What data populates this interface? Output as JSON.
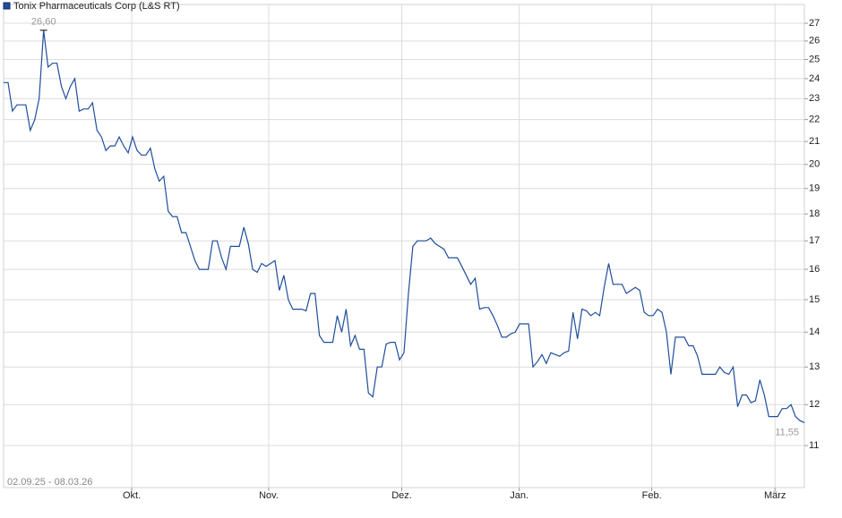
{
  "chart_data": {
    "type": "line",
    "legend": "Tonix Pharmaceuticals Corp (L&S RT)",
    "range_label": "02.09.25 - 08.03.26",
    "series": [
      {
        "name": "Tonix Pharmaceuticals Corp (L&S RT)",
        "color": "#1f4e9c",
        "values": [
          23.8,
          23.8,
          22.4,
          22.7,
          22.7,
          22.7,
          21.5,
          22.0,
          23.0,
          26.6,
          24.6,
          24.8,
          24.8,
          23.6,
          23.0,
          23.6,
          24.0,
          22.4,
          22.5,
          22.5,
          22.8,
          21.5,
          21.2,
          20.6,
          20.8,
          20.8,
          21.2,
          20.8,
          20.5,
          21.2,
          20.6,
          20.4,
          20.4,
          20.7,
          19.8,
          19.3,
          19.5,
          18.1,
          17.9,
          17.9,
          17.3,
          17.3,
          16.8,
          16.3,
          16.0,
          16.0,
          16.0,
          17.0,
          17.0,
          16.4,
          16.0,
          16.8,
          16.8,
          16.8,
          17.5,
          16.9,
          16.0,
          15.9,
          16.2,
          16.1,
          16.2,
          16.3,
          15.3,
          15.8,
          15.0,
          14.7,
          14.7,
          14.7,
          14.65,
          15.2,
          15.2,
          13.9,
          13.7,
          13.7,
          13.7,
          14.5,
          14.0,
          14.7,
          13.6,
          13.9,
          13.5,
          13.5,
          12.3,
          12.2,
          13.0,
          13.0,
          13.65,
          13.7,
          13.7,
          13.2,
          13.4,
          15.2,
          16.8,
          17.0,
          17.0,
          17.0,
          17.1,
          16.9,
          16.8,
          16.7,
          16.4,
          16.4,
          16.4,
          16.1,
          15.8,
          15.5,
          15.7,
          14.7,
          14.75,
          14.75,
          14.5,
          14.2,
          13.85,
          13.85,
          13.95,
          14.0,
          14.25,
          14.25,
          14.25,
          13.0,
          13.15,
          13.35,
          13.1,
          13.4,
          13.35,
          13.3,
          13.4,
          13.45,
          14.6,
          13.8,
          14.7,
          14.65,
          14.5,
          14.6,
          14.5,
          15.4,
          16.2,
          15.5,
          15.5,
          15.5,
          15.2,
          15.3,
          15.4,
          15.3,
          14.6,
          14.5,
          14.5,
          14.7,
          14.6,
          14.0,
          12.8,
          13.85,
          13.85,
          13.85,
          13.6,
          13.6,
          13.3,
          12.8,
          12.8,
          12.8,
          12.8,
          13.0,
          12.85,
          12.8,
          13.0,
          11.95,
          12.25,
          12.25,
          12.05,
          12.1,
          12.65,
          12.25,
          11.7,
          11.7,
          11.7,
          11.9,
          11.9,
          12.0,
          11.7,
          11.6,
          11.55
        ]
      }
    ],
    "high": {
      "value": 26.6,
      "label": "26,60"
    },
    "last": {
      "value": 11.55,
      "label": "11,55"
    },
    "log_scale": true,
    "grid": true,
    "ylim": [
      10.06,
      28.1
    ],
    "yticks": [
      11,
      12,
      13,
      14,
      15,
      16,
      17,
      18,
      19,
      20,
      21,
      22,
      23,
      24,
      25,
      26,
      27
    ],
    "xlim": [
      0,
      180
    ],
    "xticks": [
      {
        "value": 28.8,
        "label": "Okt."
      },
      {
        "value": 59.6,
        "label": "Nov."
      },
      {
        "value": 89.5,
        "label": "Dez."
      },
      {
        "value": 115.9,
        "label": "Jan."
      },
      {
        "value": 145.7,
        "label": "Feb."
      },
      {
        "value": 173.4,
        "label": "März"
      }
    ]
  }
}
